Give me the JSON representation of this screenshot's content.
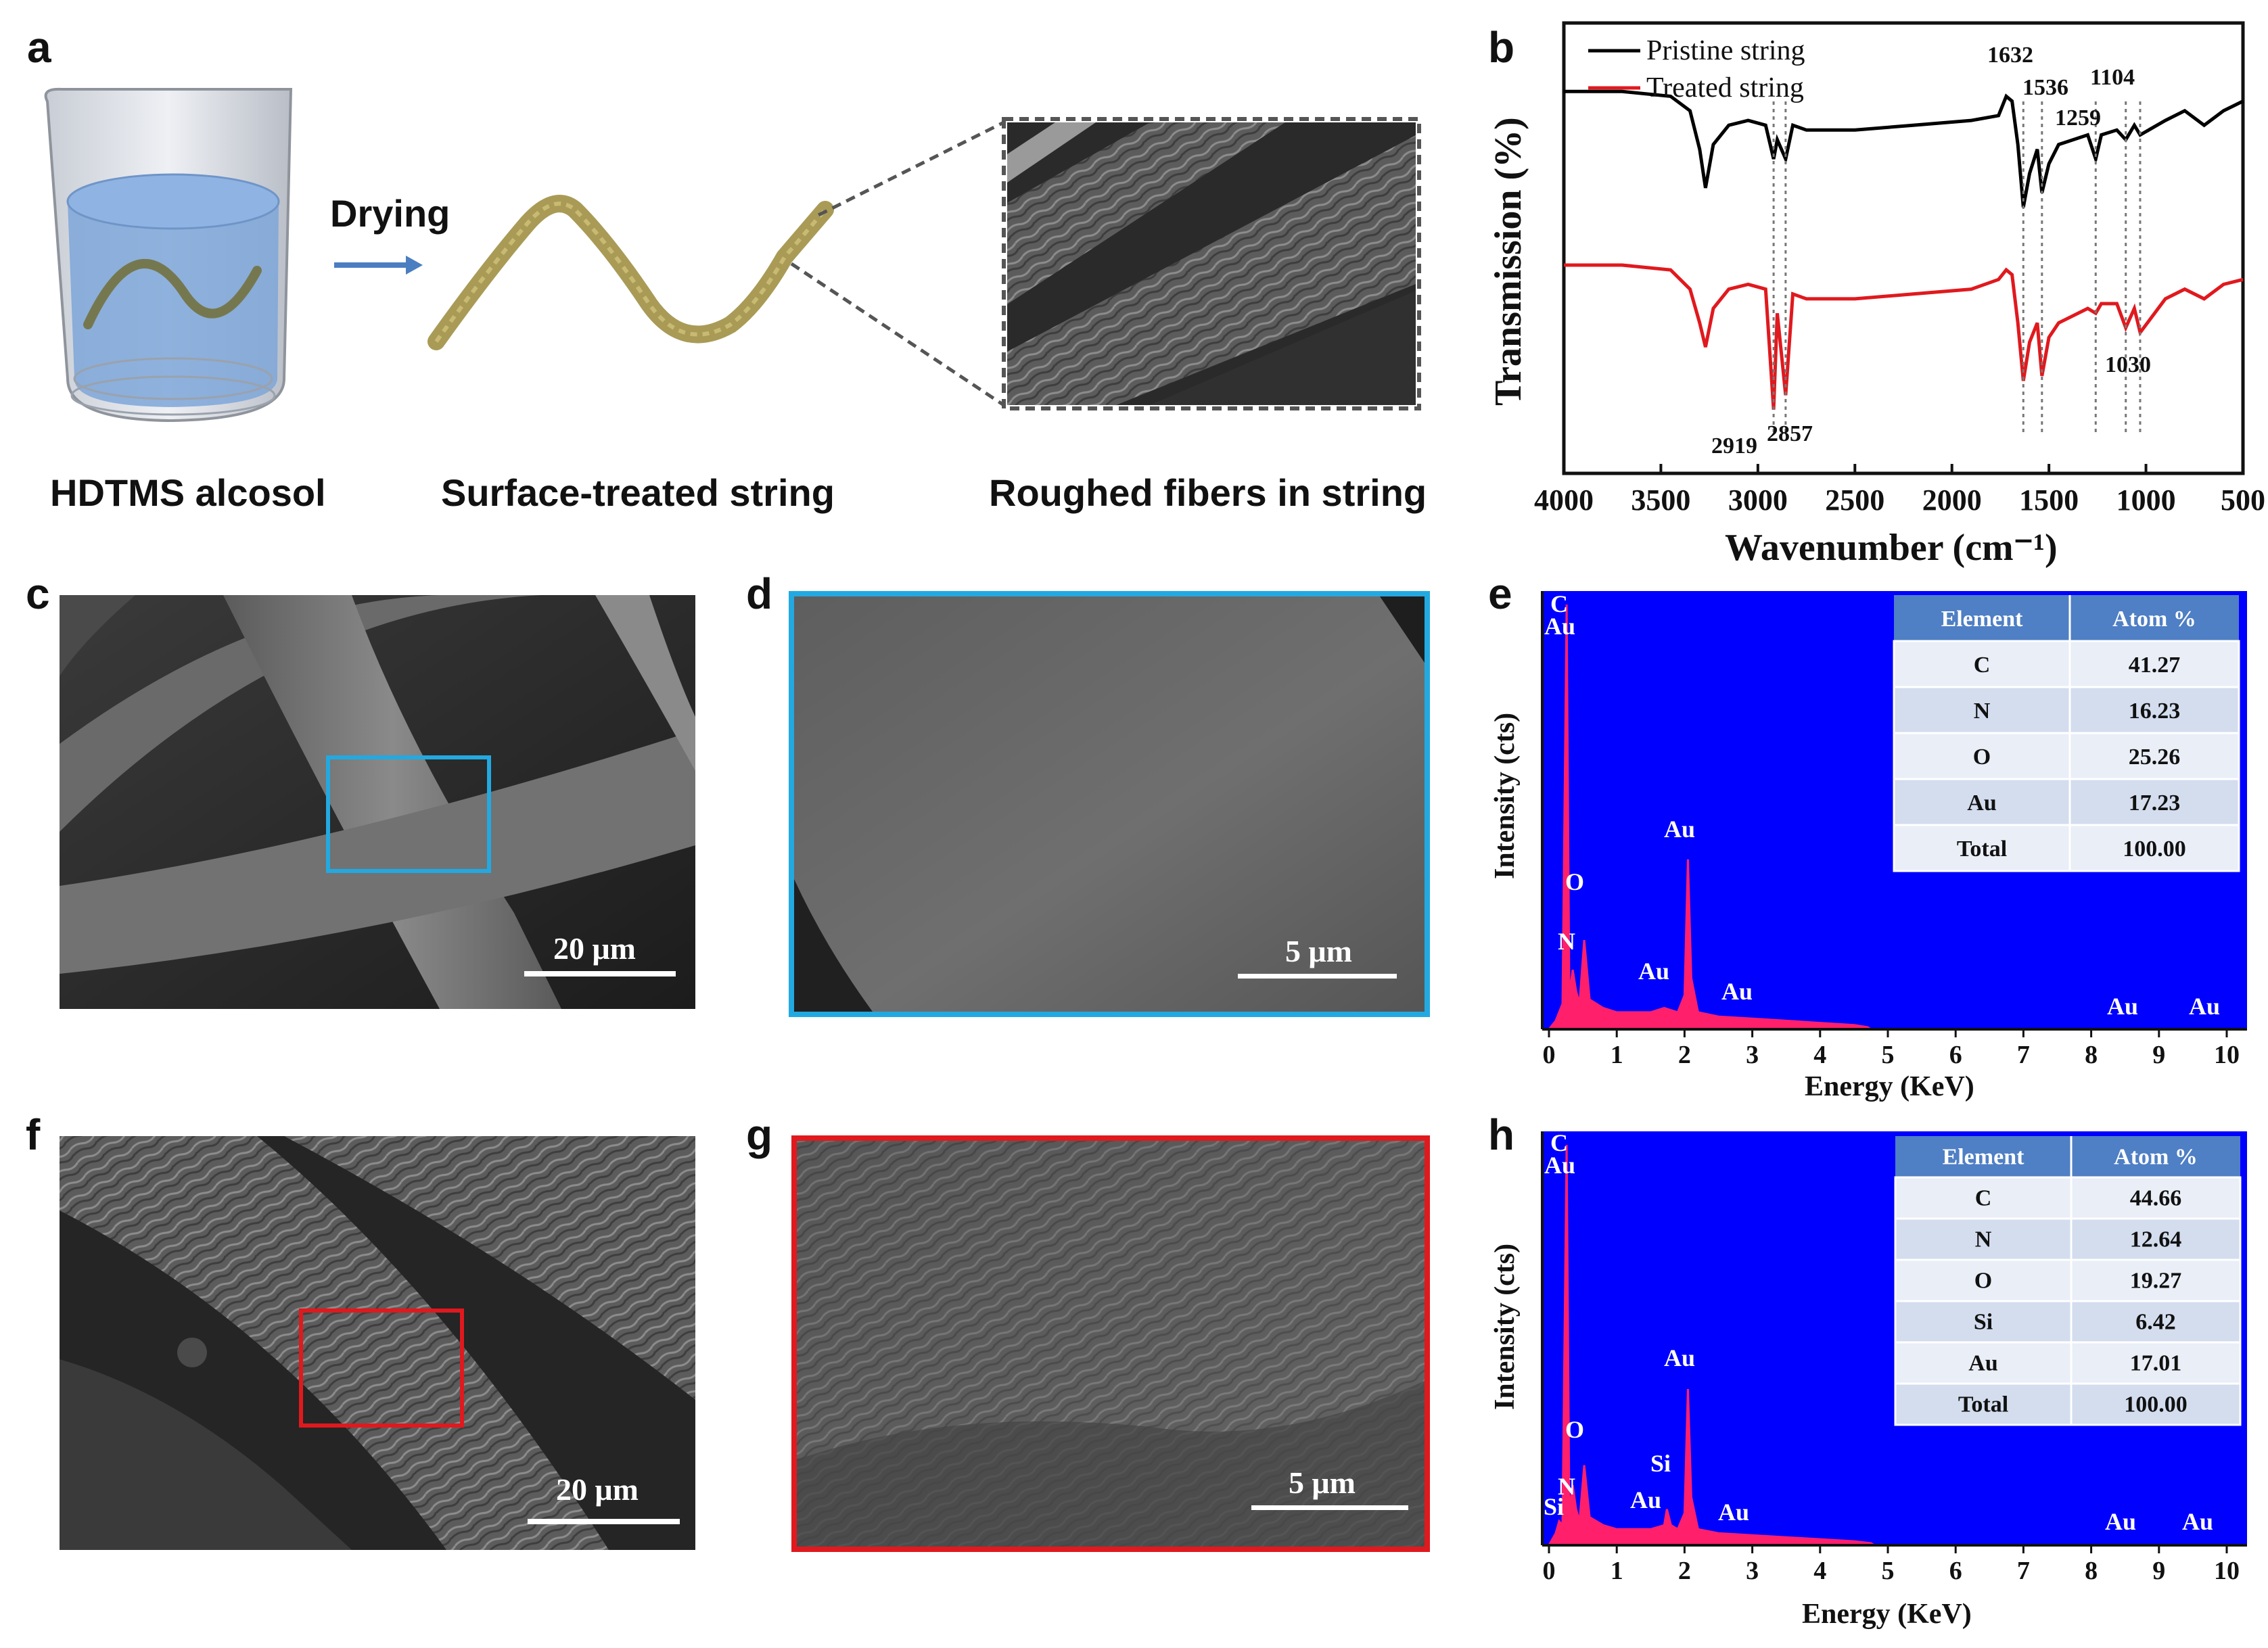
{
  "panels": {
    "a": {
      "label": "a",
      "arrow_text": "Drying",
      "captions": [
        "HDTMS alcosol",
        "Surface-treated string",
        "Roughed fibers in string"
      ],
      "colors": {
        "liquid": "#7ea6d8",
        "string": "#a99b56",
        "arrow": "#4a7ec0"
      }
    },
    "b": {
      "label": "b",
      "chart_data": {
        "type": "line",
        "xlabel": "Wavenumber (cm⁻¹)",
        "ylabel": "Transmission (%)",
        "xlim": [
          4000,
          500
        ],
        "x_reversed": true,
        "xticks": [
          "4000",
          "3500",
          "3000",
          "2500",
          "2000",
          "1500",
          "1000",
          "500"
        ],
        "series": [
          {
            "name": "Pristine string",
            "color": "#000000",
            "x": [
              4000,
              3700,
              3450,
              3350,
              3300,
              3270,
              3230,
              3150,
              3050,
              2960,
              2919,
              2900,
              2857,
              2820,
              2750,
              2500,
              2200,
              1900,
              1760,
              1720,
              1690,
              1660,
              1632,
              1600,
              1560,
              1536,
              1500,
              1450,
              1300,
              1259,
              1230,
              1150,
              1104,
              1060,
              1030,
              900,
              800,
              700,
              600,
              500
            ],
            "y": [
              90,
              90,
              89,
              86,
              78,
              70,
              79,
              83,
              84,
              83,
              76,
              80,
              76,
              83,
              82,
              82,
              83,
              84,
              85,
              89,
              88,
              79,
              66,
              73,
              78,
              69,
              75,
              79,
              81,
              76,
              81,
              82,
              80,
              83,
              81,
              84,
              86,
              83,
              86,
              88
            ]
          },
          {
            "name": "Treated string",
            "color": "#e0191e",
            "x": [
              4000,
              3700,
              3450,
              3350,
              3300,
              3270,
              3230,
              3150,
              3050,
              2960,
              2919,
              2900,
              2857,
              2820,
              2750,
              2500,
              2200,
              1900,
              1760,
              1720,
              1690,
              1660,
              1632,
              1600,
              1560,
              1536,
              1500,
              1450,
              1300,
              1259,
              1230,
              1150,
              1104,
              1060,
              1030,
              900,
              800,
              700,
              600,
              500
            ],
            "y": [
              54,
              54,
              53,
              49,
              42,
              37,
              45,
              49,
              50,
              49,
              24,
              44,
              27,
              48,
              47,
              47,
              48,
              49,
              51,
              53,
              52,
              42,
              30,
              38,
              42,
              31,
              39,
              42,
              45,
              44,
              46,
              46,
              41,
              45,
              40,
              47,
              49,
              47,
              50,
              51
            ]
          }
        ],
        "peak_labels": [
          "1632",
          "1536",
          "1104",
          "1259",
          "1030",
          "2919",
          "2857"
        ],
        "legend": "top-left"
      }
    },
    "c": {
      "label": "c",
      "scale_bar": "20 μm",
      "highlight_color": "#23a9e1"
    },
    "d": {
      "label": "d",
      "scale_bar": "5 μm",
      "border_color": "#23a9e1"
    },
    "e": {
      "label": "e",
      "chart_data": {
        "type": "area",
        "xlabel": "Energy (KeV)",
        "ylabel": "Intensity (cts)",
        "xlim": [
          0,
          10
        ],
        "xticks": [
          "0",
          "1",
          "2",
          "3",
          "4",
          "5",
          "6",
          "7",
          "8",
          "9",
          "10"
        ],
        "background": "#0000ff",
        "spectrum_color": "#ff1f6b",
        "x": [
          0,
          0.1,
          0.2,
          0.26,
          0.3,
          0.35,
          0.4,
          0.45,
          0.52,
          0.6,
          0.8,
          1.0,
          1.2,
          1.5,
          1.7,
          1.9,
          2.0,
          2.05,
          2.1,
          2.2,
          2.5,
          3.0,
          3.5,
          4.0,
          4.5,
          4.7,
          4.75
        ],
        "y": [
          0,
          2,
          6,
          100,
          8,
          14,
          9,
          6,
          21,
          7,
          5,
          4,
          4,
          4,
          5,
          4,
          8,
          40,
          12,
          4,
          3,
          2.5,
          2,
          1.5,
          1,
          0.5,
          0
        ],
        "peak_labels": [
          "C",
          "Au",
          "O",
          "N",
          "Au",
          "Au",
          "Au",
          "Au",
          "Au"
        ],
        "table": {
          "headers": [
            "Element",
            "Atom %"
          ],
          "rows": [
            [
              "C",
              "41.27"
            ],
            [
              "N",
              "16.23"
            ],
            [
              "O",
              "25.26"
            ],
            [
              "Au",
              "17.23"
            ],
            [
              "Total",
              "100.00"
            ]
          ]
        }
      }
    },
    "f": {
      "label": "f",
      "scale_bar": "20 μm",
      "highlight_color": "#e0191e"
    },
    "g": {
      "label": "g",
      "scale_bar": "5 μm",
      "border_color": "#e0191e"
    },
    "h": {
      "label": "h",
      "chart_data": {
        "type": "area",
        "xlabel": "Energy (KeV)",
        "ylabel": "Intensity (cts)",
        "xlim": [
          0,
          10
        ],
        "xticks": [
          "0",
          "1",
          "2",
          "3",
          "4",
          "5",
          "6",
          "7",
          "8",
          "9",
          "10"
        ],
        "background": "#0000ff",
        "spectrum_color": "#ff1f6b",
        "x": [
          0,
          0.1,
          0.15,
          0.2,
          0.26,
          0.3,
          0.35,
          0.4,
          0.45,
          0.52,
          0.6,
          0.8,
          1.0,
          1.2,
          1.5,
          1.7,
          1.74,
          1.8,
          1.9,
          2.0,
          2.05,
          2.1,
          2.2,
          2.5,
          3.0,
          3.5,
          4.0,
          4.5,
          4.75,
          4.8
        ],
        "y": [
          0,
          3,
          6,
          5,
          100,
          8,
          15,
          9,
          6,
          20,
          7,
          5,
          4,
          4,
          4,
          5,
          9,
          5,
          4,
          8,
          39,
          12,
          4,
          3,
          2.5,
          2,
          1.5,
          1,
          0.5,
          0
        ],
        "peak_labels": [
          "C",
          "Au",
          "O",
          "Si",
          "N",
          "Si",
          "Au",
          "Au",
          "Au",
          "Au",
          "Au"
        ],
        "table": {
          "headers": [
            "Element",
            "Atom %"
          ],
          "rows": [
            [
              "C",
              "44.66"
            ],
            [
              "N",
              "12.64"
            ],
            [
              "O",
              "19.27"
            ],
            [
              "Si",
              "6.42"
            ],
            [
              "Au",
              "17.01"
            ],
            [
              "Total",
              "100.00"
            ]
          ]
        }
      }
    }
  }
}
